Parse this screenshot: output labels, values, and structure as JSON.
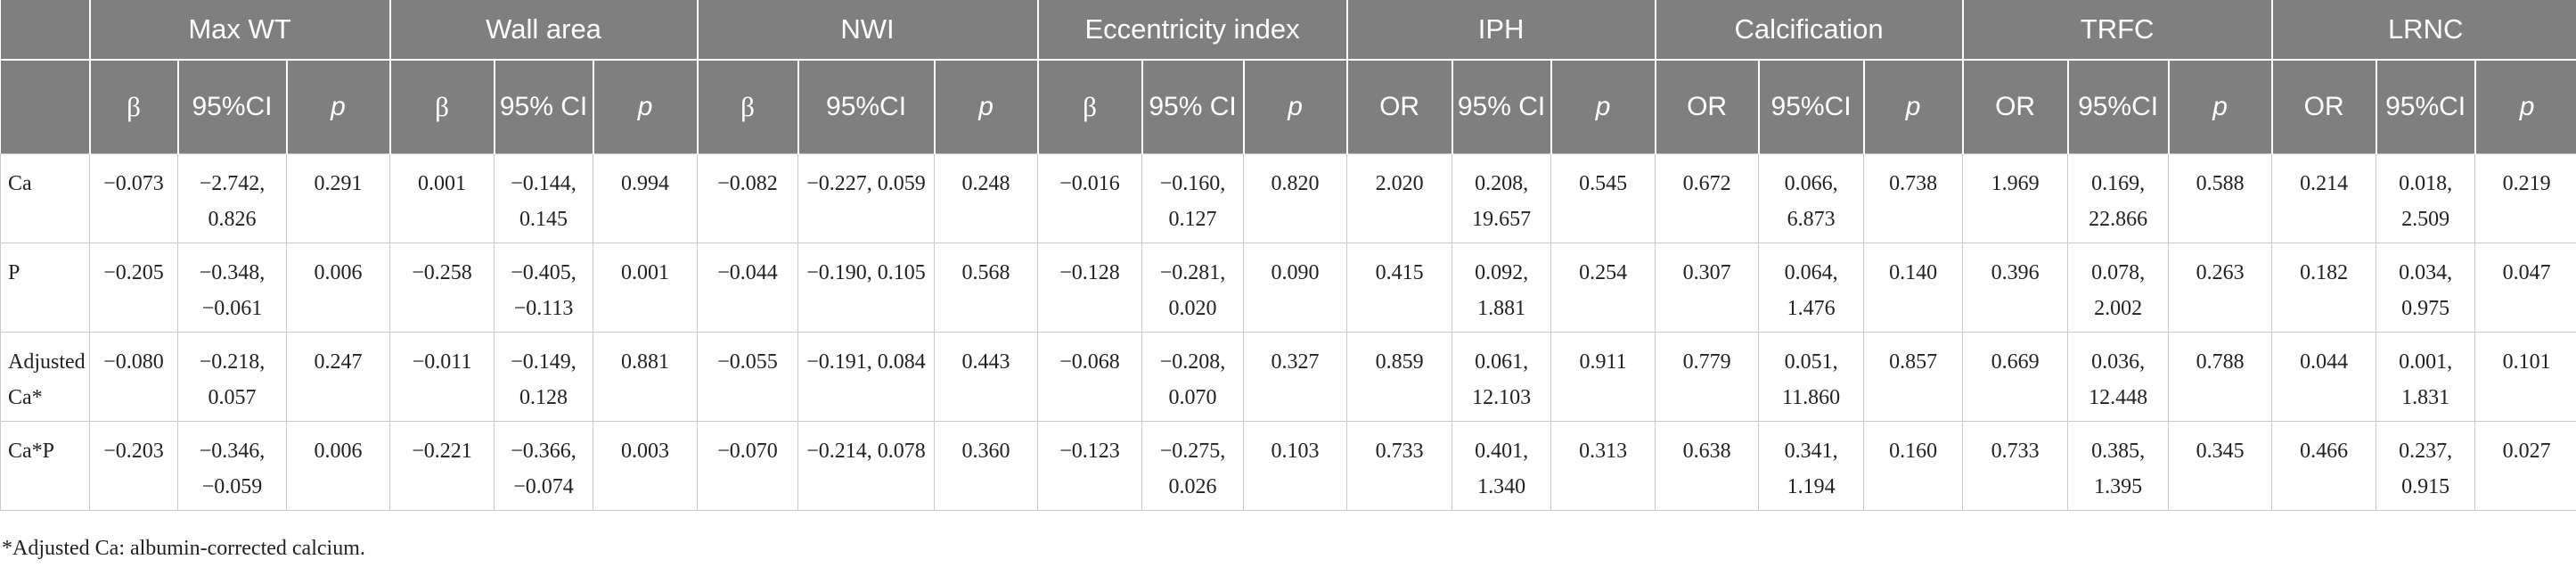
{
  "groups": [
    {
      "label": "Max WT",
      "cols": [
        "β",
        "95%CI",
        "p"
      ]
    },
    {
      "label": "Wall area",
      "cols": [
        "β",
        "95% CI",
        "p"
      ]
    },
    {
      "label": "NWI",
      "cols": [
        "β",
        "95%CI",
        "p"
      ]
    },
    {
      "label": "Eccentricity index",
      "cols": [
        "β",
        "95% CI",
        "p"
      ]
    },
    {
      "label": "IPH",
      "cols": [
        "OR",
        "95% CI",
        "p"
      ]
    },
    {
      "label": "Calcification",
      "cols": [
        "OR",
        "95%CI",
        "p"
      ]
    },
    {
      "label": "TRFC",
      "cols": [
        "OR",
        "95%CI",
        "p"
      ]
    },
    {
      "label": "LRNC",
      "cols": [
        "OR",
        "95%CI",
        "p"
      ]
    }
  ],
  "rows": [
    {
      "label": "Ca",
      "cells": [
        "−0.073",
        "−2.742, 0.826",
        "0.291",
        "0.001",
        "−0.144, 0.145",
        "0.994",
        "−0.082",
        "−0.227, 0.059",
        "0.248",
        "−0.016",
        "−0.160, 0.127",
        "0.820",
        "2.020",
        "0.208, 19.657",
        "0.545",
        "0.672",
        "0.066, 6.873",
        "0.738",
        "1.969",
        "0.169, 22.866",
        "0.588",
        "0.214",
        "0.018, 2.509",
        "0.219"
      ]
    },
    {
      "label": "P",
      "cells": [
        "−0.205",
        "−0.348, −0.061",
        "0.006",
        "−0.258",
        "−0.405, −0.113",
        "0.001",
        "−0.044",
        "−0.190, 0.105",
        "0.568",
        "−0.128",
        "−0.281, 0.020",
        "0.090",
        "0.415",
        "0.092, 1.881",
        "0.254",
        "0.307",
        "0.064, 1.476",
        "0.140",
        "0.396",
        "0.078, 2.002",
        "0.263",
        "0.182",
        "0.034, 0.975",
        "0.047"
      ]
    },
    {
      "label": "Adjusted Ca*",
      "cells": [
        "−0.080",
        "−0.218, 0.057",
        "0.247",
        "−0.011",
        "−0.149, 0.128",
        "0.881",
        "−0.055",
        "−0.191, 0.084",
        "0.443",
        "−0.068",
        "−0.208, 0.070",
        "0.327",
        "0.859",
        "0.061, 12.103",
        "0.911",
        "0.779",
        "0.051, 11.860",
        "0.857",
        "0.669",
        "0.036, 12.448",
        "0.788",
        "0.044",
        "0.001, 1.831",
        "0.101"
      ]
    },
    {
      "label": "Ca*P",
      "cells": [
        "−0.203",
        "−0.346, −0.059",
        "0.006",
        "−0.221",
        "−0.366, −0.074",
        "0.003",
        "−0.070",
        "−0.214, 0.078",
        "0.360",
        "−0.123",
        "−0.275, 0.026",
        "0.103",
        "0.733",
        "0.401, 1.340",
        "0.313",
        "0.638",
        "0.341, 1.194",
        "0.160",
        "0.733",
        "0.385, 1.395",
        "0.345",
        "0.466",
        "0.237, 0.915",
        "0.027"
      ]
    }
  ],
  "footnote": "*Adjusted Ca: albumin-corrected calcium.",
  "colors": {
    "header_bg": "#7f7f7f",
    "header_text": "#ffffff",
    "grid": "#c8c8c8"
  }
}
